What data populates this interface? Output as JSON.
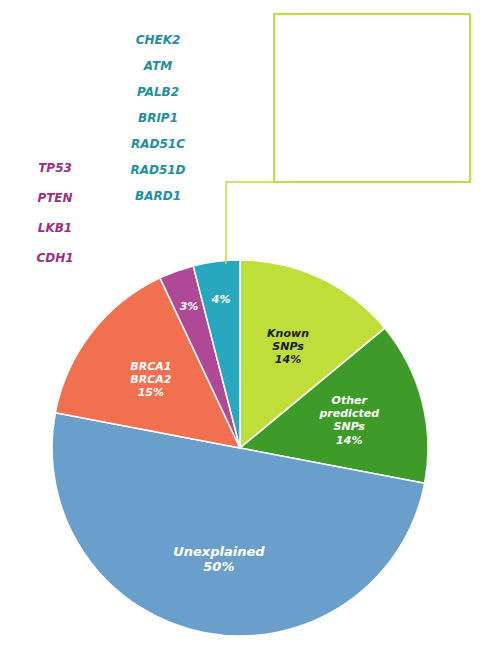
{
  "chart_data": {
    "type": "pie",
    "categories": [
      "Known\nSNPs",
      "Other\npredicted\nSNPs",
      "Unexplained",
      "BRCA1\nBRCA2",
      null,
      null
    ],
    "values": [
      14,
      14,
      50,
      15,
      3,
      4
    ],
    "value_labels": [
      "14%",
      "14%",
      "50%",
      "15%",
      "3%",
      "4%"
    ],
    "colors": [
      "#BFDE3A",
      "#3E9B2A",
      "#6A9FCC",
      "#F07050",
      "#B04898",
      "#28A8BE"
    ],
    "data_labels": true,
    "annotations": [
      {
        "lines": [
          "CHEK2",
          "ATM",
          "PALB2",
          "BRIP1",
          "RAD51C",
          "RAD51D",
          "BARD1"
        ],
        "color": "#2090A0"
      },
      {
        "lines": [
          "TP53",
          "PTEN",
          "LKB1",
          "CDH1"
        ],
        "color": "#9B3080"
      }
    ]
  }
}
